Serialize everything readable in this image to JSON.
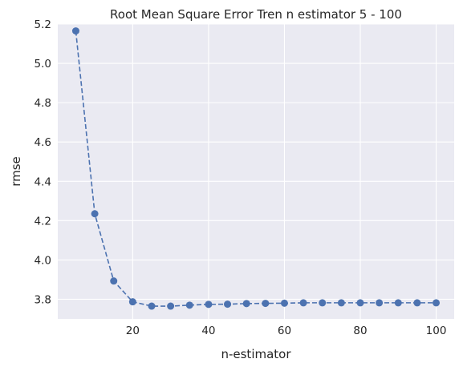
{
  "chart_data": {
    "type": "line",
    "title": "Root Mean Square Error Tren n estimator 5 - 100",
    "xlabel": "n-estimator",
    "ylabel": "rmse",
    "xlim": [
      0.25,
      104.75
    ],
    "ylim": [
      3.7,
      5.2
    ],
    "xticks": [
      20,
      40,
      60,
      80,
      100
    ],
    "yticks": [
      3.8,
      4.0,
      4.2,
      4.4,
      4.6,
      4.8,
      5.0,
      5.2
    ],
    "ytick_labels": [
      "3.8",
      "4.0",
      "4.2",
      "4.4",
      "4.6",
      "4.8",
      "5.0",
      "5.2"
    ],
    "grid": true,
    "style": "dashed line with circle markers",
    "colors": {
      "series": "#4c72b0",
      "plot_bg": "#eaeaf2",
      "grid": "#ffffff"
    },
    "series": [
      {
        "x": [
          5,
          10,
          15,
          20,
          25,
          30,
          35,
          40,
          45,
          50,
          55,
          60,
          65,
          70,
          75,
          80,
          85,
          90,
          95,
          100
        ],
        "y": [
          5.165,
          4.235,
          3.893,
          3.787,
          3.765,
          3.765,
          3.77,
          3.774,
          3.775,
          3.778,
          3.779,
          3.78,
          3.782,
          3.782,
          3.782,
          3.782,
          3.782,
          3.782,
          3.782,
          3.782
        ]
      }
    ]
  }
}
